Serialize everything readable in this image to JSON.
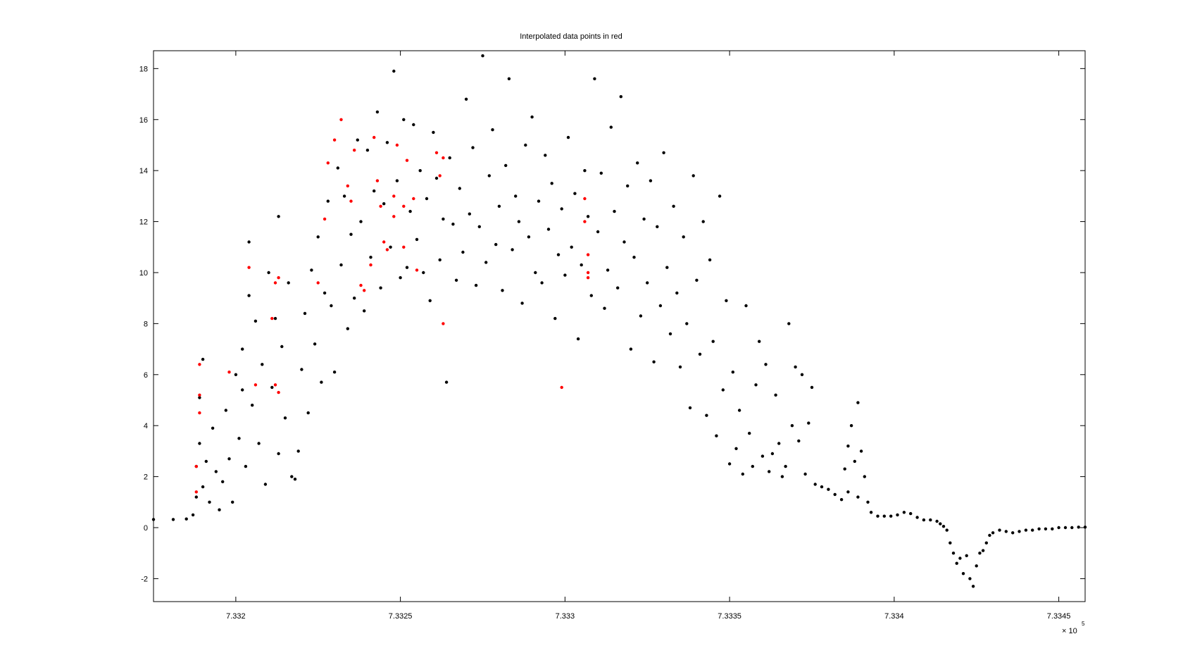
{
  "chart_data": {
    "type": "scatter",
    "title": "Interpolated data points in red",
    "xlabel": "",
    "ylabel": "",
    "xlim": [
      733175,
      733458
    ],
    "ylim": [
      -2.9,
      18.7
    ],
    "x_exponent_label": "× 10",
    "x_exponent": "5",
    "x_ticks": [
      733200,
      733250,
      733300,
      733350,
      733400,
      733450
    ],
    "x_tick_labels": [
      "7.332",
      "7.3325",
      "7.333",
      "7.3335",
      "7.334",
      "7.3345"
    ],
    "y_ticks": [
      -2,
      0,
      2,
      4,
      6,
      8,
      10,
      12,
      14,
      16,
      18
    ],
    "y_tick_labels": [
      "-2",
      "0",
      "2",
      "4",
      "6",
      "8",
      "10",
      "12",
      "14",
      "16",
      "18"
    ],
    "grid": false,
    "legend": "none",
    "colors": {
      "measured": "#000000",
      "interpolated": "#ff0000"
    },
    "series": [
      {
        "color": "#000000",
        "points": [
          [
            733175,
            0.32
          ],
          [
            733181,
            0.32
          ],
          [
            733185,
            0.34
          ],
          [
            733187,
            0.5
          ],
          [
            733188,
            1.2
          ],
          [
            733188,
            2.4
          ],
          [
            733189,
            3.3
          ],
          [
            733189,
            5.1
          ],
          [
            733190,
            6.6
          ],
          [
            733190,
            1.6
          ],
          [
            733191,
            2.6
          ],
          [
            733192,
            1.0
          ],
          [
            733193,
            3.9
          ],
          [
            733194,
            2.2
          ],
          [
            733195,
            0.7
          ],
          [
            733196,
            1.8
          ],
          [
            733197,
            4.6
          ],
          [
            733198,
            2.7
          ],
          [
            733199,
            1.0
          ],
          [
            733200,
            6.0
          ],
          [
            733201,
            3.5
          ],
          [
            733202,
            7.0
          ],
          [
            733202,
            5.4
          ],
          [
            733203,
            2.4
          ],
          [
            733204,
            9.1
          ],
          [
            733204,
            11.2
          ],
          [
            733205,
            4.8
          ],
          [
            733206,
            8.1
          ],
          [
            733207,
            3.3
          ],
          [
            733208,
            6.4
          ],
          [
            733209,
            1.7
          ],
          [
            733210,
            10.0
          ],
          [
            733211,
            5.5
          ],
          [
            733212,
            8.2
          ],
          [
            733213,
            2.9
          ],
          [
            733213,
            12.2
          ],
          [
            733214,
            7.1
          ],
          [
            733215,
            4.3
          ],
          [
            733216,
            9.6
          ],
          [
            733217,
            2.0
          ],
          [
            733218,
            1.9
          ],
          [
            733219,
            3.0
          ],
          [
            733220,
            6.2
          ],
          [
            733221,
            8.4
          ],
          [
            733222,
            4.5
          ],
          [
            733223,
            10.1
          ],
          [
            733224,
            7.2
          ],
          [
            733225,
            11.4
          ],
          [
            733226,
            5.7
          ],
          [
            733227,
            9.2
          ],
          [
            733228,
            12.8
          ],
          [
            733229,
            8.7
          ],
          [
            733230,
            6.1
          ],
          [
            733231,
            14.1
          ],
          [
            733232,
            10.3
          ],
          [
            733233,
            13.0
          ],
          [
            733234,
            7.8
          ],
          [
            733235,
            11.5
          ],
          [
            733236,
            9.0
          ],
          [
            733237,
            15.2
          ],
          [
            733238,
            12.0
          ],
          [
            733239,
            8.5
          ],
          [
            733240,
            14.8
          ],
          [
            733241,
            10.6
          ],
          [
            733242,
            13.2
          ],
          [
            733243,
            16.3
          ],
          [
            733244,
            9.4
          ],
          [
            733245,
            12.7
          ],
          [
            733246,
            15.1
          ],
          [
            733247,
            11.0
          ],
          [
            733248,
            17.9
          ],
          [
            733249,
            13.6
          ],
          [
            733250,
            9.8
          ],
          [
            733251,
            16.0
          ],
          [
            733252,
            10.2
          ],
          [
            733253,
            12.4
          ],
          [
            733254,
            15.8
          ],
          [
            733255,
            11.3
          ],
          [
            733256,
            14.0
          ],
          [
            733257,
            10.0
          ],
          [
            733258,
            12.9
          ],
          [
            733259,
            8.9
          ],
          [
            733260,
            15.5
          ],
          [
            733261,
            13.7
          ],
          [
            733262,
            10.5
          ],
          [
            733263,
            12.1
          ],
          [
            733264,
            5.7
          ],
          [
            733265,
            14.5
          ],
          [
            733266,
            11.9
          ],
          [
            733267,
            9.7
          ],
          [
            733268,
            13.3
          ],
          [
            733269,
            10.8
          ],
          [
            733270,
            16.8
          ],
          [
            733271,
            12.3
          ],
          [
            733272,
            14.9
          ],
          [
            733273,
            9.5
          ],
          [
            733274,
            11.8
          ],
          [
            733275,
            18.5
          ],
          [
            733276,
            10.4
          ],
          [
            733277,
            13.8
          ],
          [
            733278,
            15.6
          ],
          [
            733279,
            11.1
          ],
          [
            733280,
            12.6
          ],
          [
            733281,
            9.3
          ],
          [
            733282,
            14.2
          ],
          [
            733283,
            17.6
          ],
          [
            733284,
            10.9
          ],
          [
            733285,
            13.0
          ],
          [
            733286,
            12.0
          ],
          [
            733287,
            8.8
          ],
          [
            733288,
            15.0
          ],
          [
            733289,
            11.4
          ],
          [
            733290,
            16.1
          ],
          [
            733291,
            10.0
          ],
          [
            733292,
            12.8
          ],
          [
            733293,
            9.6
          ],
          [
            733294,
            14.6
          ],
          [
            733295,
            11.7
          ],
          [
            733296,
            13.5
          ],
          [
            733297,
            8.2
          ],
          [
            733298,
            10.7
          ],
          [
            733299,
            12.5
          ],
          [
            733300,
            9.9
          ],
          [
            733301,
            15.3
          ],
          [
            733302,
            11.0
          ],
          [
            733303,
            13.1
          ],
          [
            733304,
            7.4
          ],
          [
            733305,
            10.3
          ],
          [
            733306,
            14.0
          ],
          [
            733307,
            12.2
          ],
          [
            733308,
            9.1
          ],
          [
            733309,
            17.6
          ],
          [
            733310,
            11.6
          ],
          [
            733311,
            13.9
          ],
          [
            733312,
            8.6
          ],
          [
            733313,
            10.1
          ],
          [
            733314,
            15.7
          ],
          [
            733315,
            12.4
          ],
          [
            733316,
            9.4
          ],
          [
            733317,
            16.9
          ],
          [
            733318,
            11.2
          ],
          [
            733319,
            13.4
          ],
          [
            733320,
            7.0
          ],
          [
            733321,
            10.6
          ],
          [
            733322,
            14.3
          ],
          [
            733323,
            8.3
          ],
          [
            733324,
            12.1
          ],
          [
            733325,
            9.6
          ],
          [
            733326,
            13.6
          ],
          [
            733327,
            6.5
          ],
          [
            733328,
            11.8
          ],
          [
            733329,
            8.7
          ],
          [
            733330,
            14.7
          ],
          [
            733331,
            10.2
          ],
          [
            733332,
            7.6
          ],
          [
            733333,
            12.6
          ],
          [
            733334,
            9.2
          ],
          [
            733335,
            6.3
          ],
          [
            733336,
            11.4
          ],
          [
            733337,
            8.0
          ],
          [
            733338,
            4.7
          ],
          [
            733339,
            13.8
          ],
          [
            733340,
            9.7
          ],
          [
            733341,
            6.8
          ],
          [
            733342,
            12.0
          ],
          [
            733343,
            4.4
          ],
          [
            733344,
            10.5
          ],
          [
            733345,
            7.3
          ],
          [
            733346,
            3.6
          ],
          [
            733347,
            13.0
          ],
          [
            733348,
            5.4
          ],
          [
            733349,
            8.9
          ],
          [
            733350,
            2.5
          ],
          [
            733351,
            6.1
          ],
          [
            733352,
            3.1
          ],
          [
            733353,
            4.6
          ],
          [
            733354,
            2.1
          ],
          [
            733355,
            8.7
          ],
          [
            733356,
            3.7
          ],
          [
            733357,
            2.4
          ],
          [
            733358,
            5.6
          ],
          [
            733359,
            7.3
          ],
          [
            733360,
            2.8
          ],
          [
            733361,
            6.4
          ],
          [
            733362,
            2.2
          ],
          [
            733363,
            2.9
          ],
          [
            733364,
            5.2
          ],
          [
            733365,
            3.3
          ],
          [
            733366,
            2.0
          ],
          [
            733367,
            2.4
          ],
          [
            733368,
            8.0
          ],
          [
            733369,
            4.0
          ],
          [
            733370,
            6.3
          ],
          [
            733371,
            3.4
          ],
          [
            733372,
            6.0
          ],
          [
            733373,
            2.1
          ],
          [
            733374,
            4.1
          ],
          [
            733375,
            5.5
          ],
          [
            733376,
            1.7
          ],
          [
            733378,
            1.6
          ],
          [
            733380,
            1.5
          ],
          [
            733382,
            1.3
          ],
          [
            733384,
            1.1
          ],
          [
            733385,
            2.3
          ],
          [
            733386,
            3.2
          ],
          [
            733386,
            1.4
          ],
          [
            733387,
            4.0
          ],
          [
            733388,
            2.6
          ],
          [
            733389,
            4.9
          ],
          [
            733389,
            1.2
          ],
          [
            733390,
            3.0
          ],
          [
            733391,
            2.0
          ],
          [
            733392,
            1.0
          ],
          [
            733393,
            0.6
          ],
          [
            733395,
            0.45
          ],
          [
            733397,
            0.45
          ],
          [
            733399,
            0.45
          ],
          [
            733401,
            0.5
          ],
          [
            733403,
            0.6
          ],
          [
            733405,
            0.55
          ],
          [
            733407,
            0.4
          ],
          [
            733409,
            0.3
          ],
          [
            733411,
            0.3
          ],
          [
            733413,
            0.25
          ],
          [
            733414,
            0.15
          ],
          [
            733415,
            0.05
          ],
          [
            733416,
            -0.1
          ],
          [
            733417,
            -0.6
          ],
          [
            733418,
            -1.0
          ],
          [
            733419,
            -1.4
          ],
          [
            733420,
            -1.2
          ],
          [
            733421,
            -1.8
          ],
          [
            733422,
            -1.1
          ],
          [
            733423,
            -2.0
          ],
          [
            733424,
            -2.3
          ],
          [
            733425,
            -1.5
          ],
          [
            733426,
            -1.0
          ],
          [
            733427,
            -0.9
          ],
          [
            733428,
            -0.6
          ],
          [
            733429,
            -0.3
          ],
          [
            733430,
            -0.2
          ],
          [
            733432,
            -0.1
          ],
          [
            733434,
            -0.15
          ],
          [
            733436,
            -0.2
          ],
          [
            733438,
            -0.15
          ],
          [
            733440,
            -0.1
          ],
          [
            733442,
            -0.1
          ],
          [
            733444,
            -0.05
          ],
          [
            733446,
            -0.05
          ],
          [
            733448,
            -0.05
          ],
          [
            733450,
            0.0
          ],
          [
            733452,
            0.0
          ],
          [
            733454,
            0.0
          ],
          [
            733456,
            0.02
          ],
          [
            733458,
            0.02
          ]
        ]
      },
      {
        "color": "#ff0000",
        "points": [
          [
            733189,
            6.4
          ],
          [
            733189,
            5.2
          ],
          [
            733189,
            4.5
          ],
          [
            733188,
            2.4
          ],
          [
            733188,
            1.4
          ],
          [
            733198,
            6.1
          ],
          [
            733204,
            10.2
          ],
          [
            733206,
            5.6
          ],
          [
            733211,
            8.2
          ],
          [
            733212,
            9.6
          ],
          [
            733212,
            5.6
          ],
          [
            733213,
            9.8
          ],
          [
            733213,
            5.3
          ],
          [
            733225,
            9.6
          ],
          [
            733227,
            12.1
          ],
          [
            733228,
            14.3
          ],
          [
            733230,
            15.2
          ],
          [
            733232,
            16.0
          ],
          [
            733234,
            13.4
          ],
          [
            733235,
            12.8
          ],
          [
            733236,
            14.8
          ],
          [
            733238,
            9.5
          ],
          [
            733239,
            9.3
          ],
          [
            733241,
            10.3
          ],
          [
            733242,
            15.3
          ],
          [
            733243,
            13.6
          ],
          [
            733244,
            12.6
          ],
          [
            733245,
            11.2
          ],
          [
            733246,
            10.9
          ],
          [
            733248,
            12.2
          ],
          [
            733248,
            13.0
          ],
          [
            733249,
            15.0
          ],
          [
            733251,
            12.6
          ],
          [
            733251,
            11.0
          ],
          [
            733252,
            14.4
          ],
          [
            733254,
            12.9
          ],
          [
            733255,
            10.1
          ],
          [
            733261,
            14.7
          ],
          [
            733262,
            13.8
          ],
          [
            733263,
            14.5
          ],
          [
            733263,
            8.0
          ],
          [
            733299,
            5.5
          ],
          [
            733306,
            12.9
          ],
          [
            733306,
            12.0
          ],
          [
            733307,
            10.7
          ],
          [
            733307,
            10.0
          ],
          [
            733307,
            9.8
          ]
        ]
      }
    ]
  }
}
